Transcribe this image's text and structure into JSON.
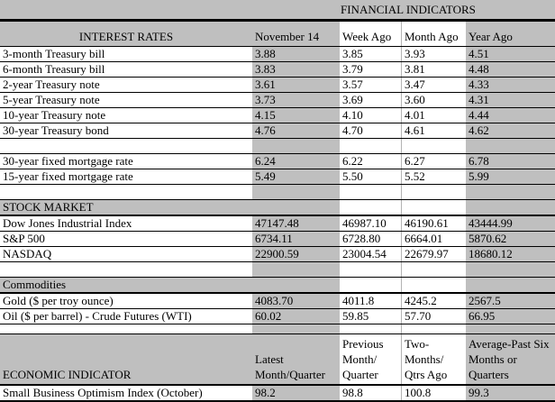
{
  "title": "FINANCIAL INDICATORS",
  "columns": {
    "current": "November 14",
    "week_ago": "Week Ago",
    "month_ago": "Month Ago",
    "year_ago": "Year Ago"
  },
  "interest_rates": {
    "heading": "INTEREST RATES",
    "rows": [
      {
        "label": "3-month Treasury bill",
        "values": [
          "3.88",
          "3.85",
          "3.93",
          "4.51"
        ]
      },
      {
        "label": "6-month Treasury bill",
        "values": [
          "3.83",
          "3.79",
          "3.81",
          "4.48"
        ]
      },
      {
        "label": "2-year Treasury note",
        "values": [
          "3.61",
          "3.57",
          "3.47",
          "4.33"
        ]
      },
      {
        "label": "5-year Treasury note",
        "values": [
          "3.73",
          "3.69",
          "3.60",
          "4.31"
        ]
      },
      {
        "label": "10-year Treasury note",
        "values": [
          "4.15",
          "4.10",
          "4.01",
          "4.44"
        ]
      },
      {
        "label": "30-year Treasury bond",
        "values": [
          "4.76",
          "4.70",
          "4.61",
          "4.62"
        ]
      }
    ],
    "mortgage_rows": [
      {
        "label": "30-year fixed mortgage rate",
        "values": [
          "6.24",
          "6.22",
          "6.27",
          "6.78"
        ]
      },
      {
        "label": "15-year fixed mortgage rate",
        "values": [
          "5.49",
          "5.50",
          "5.52",
          "5.99"
        ]
      }
    ]
  },
  "stock_market": {
    "heading": "STOCK MARKET",
    "rows": [
      {
        "label": "Dow Jones Industrial Index",
        "values": [
          "47147.48",
          "46987.10",
          "46190.61",
          "43444.99"
        ]
      },
      {
        "label": "S&P 500",
        "values": [
          "6734.11",
          "6728.80",
          "6664.01",
          "5870.62"
        ]
      },
      {
        "label": "NASDAQ",
        "values": [
          "22900.59",
          "23004.54",
          "22679.97",
          "18680.12"
        ]
      }
    ]
  },
  "commodities": {
    "heading": "Commodities",
    "rows": [
      {
        "label": "Gold ($ per troy ounce)",
        "values": [
          "4083.70",
          "4011.8",
          "4245.2",
          "2567.5"
        ]
      },
      {
        "label": "Oil ($ per barrel) - Crude Futures (WTI)",
        "values": [
          "60.02",
          "59.85",
          "57.70",
          "66.95"
        ]
      }
    ]
  },
  "economic": {
    "heading": "ECONOMIC INDICATOR",
    "col_headers": [
      "Latest\nMonth/Quarter",
      "Previous\nMonth/\nQuarter",
      "Two-\nMonths/\nQtrs Ago",
      "Average-Past Six\nMonths or\nQuarters"
    ],
    "rows": [
      {
        "label": "Small Business Optimism Index (October)",
        "values": [
          "98.2",
          "98.8",
          "100.8",
          "99.3"
        ]
      }
    ]
  },
  "colors": {
    "cell_gray": "#bfbfbf",
    "cell_white": "#ffffff",
    "border": "#000000",
    "gridline": "#b3b3b3"
  }
}
